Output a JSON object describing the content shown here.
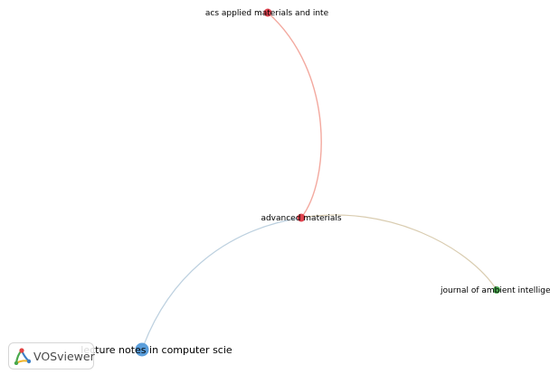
{
  "nodes": [
    {
      "id": "acs",
      "label": "acs applied materials and inte",
      "color": "#e0434f"
    },
    {
      "id": "adv",
      "label": "advanced materials",
      "color": "#e0434f"
    },
    {
      "id": "jai",
      "label": "journal of ambient intelligenc",
      "color": "#4aa84f"
    },
    {
      "id": "lncs",
      "label": "lecture notes in computer scie",
      "color": "#5a9edb"
    }
  ],
  "links": [
    {
      "source": "acs",
      "target": "adv",
      "color": "#f3a99f"
    },
    {
      "source": "adv",
      "target": "jai",
      "color": "#d9ccb0"
    },
    {
      "source": "adv",
      "target": "lncs",
      "color": "#bcd0df"
    }
  ],
  "brand": {
    "name": "VOSviewer"
  }
}
